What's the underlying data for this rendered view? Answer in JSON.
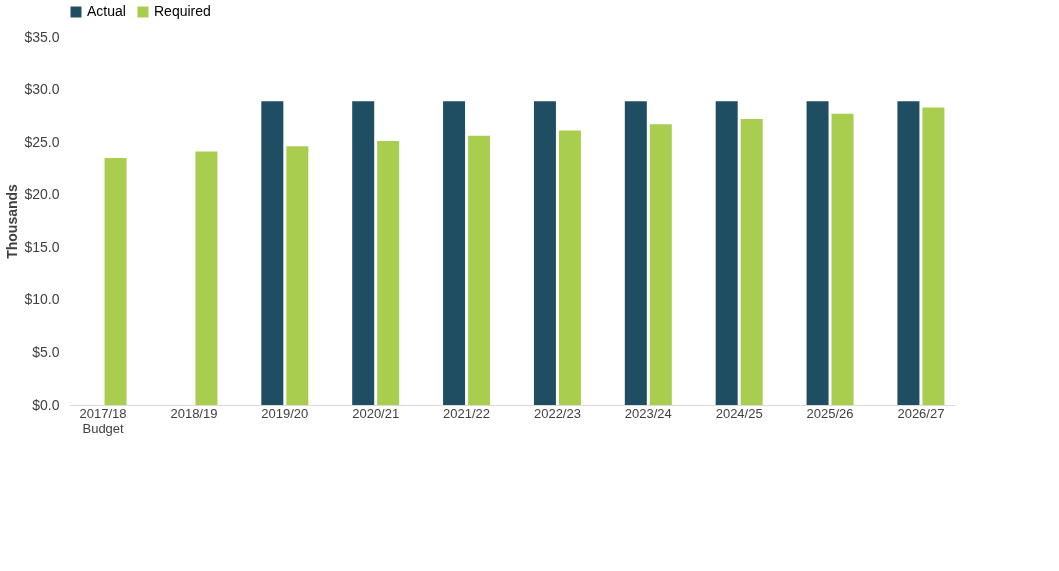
{
  "chart_data": {
    "type": "bar",
    "ylabel": "Thousands",
    "categories": [
      "2017/18\nBudget",
      "2018/19",
      "2019/20",
      "2020/21",
      "2021/22",
      "2022/23",
      "2023/24",
      "2024/25",
      "2025/26",
      "2026/27"
    ],
    "series": [
      {
        "name": "Actual",
        "color": "#1f4e63",
        "values": [
          null,
          null,
          28.9,
          28.9,
          28.9,
          28.9,
          28.9,
          28.9,
          28.9,
          28.9
        ]
      },
      {
        "name": "Required",
        "color": "#a9cd4f",
        "values": [
          23.5,
          24.1,
          24.6,
          25.1,
          25.6,
          26.1,
          26.7,
          27.2,
          27.7,
          28.3
        ]
      }
    ],
    "ylim": [
      0,
      35
    ],
    "yticks": [
      {
        "value": 0,
        "label": "$0.0"
      },
      {
        "value": 5,
        "label": "$5.0"
      },
      {
        "value": 10,
        "label": "$10.0"
      },
      {
        "value": 15,
        "label": "$15.0"
      },
      {
        "value": 20,
        "label": "$20.0"
      },
      {
        "value": 25,
        "label": "$25.0"
      },
      {
        "value": 30,
        "label": "$30.0"
      },
      {
        "value": 35,
        "label": "$35.0"
      }
    ],
    "legend": "top",
    "grid": false
  }
}
